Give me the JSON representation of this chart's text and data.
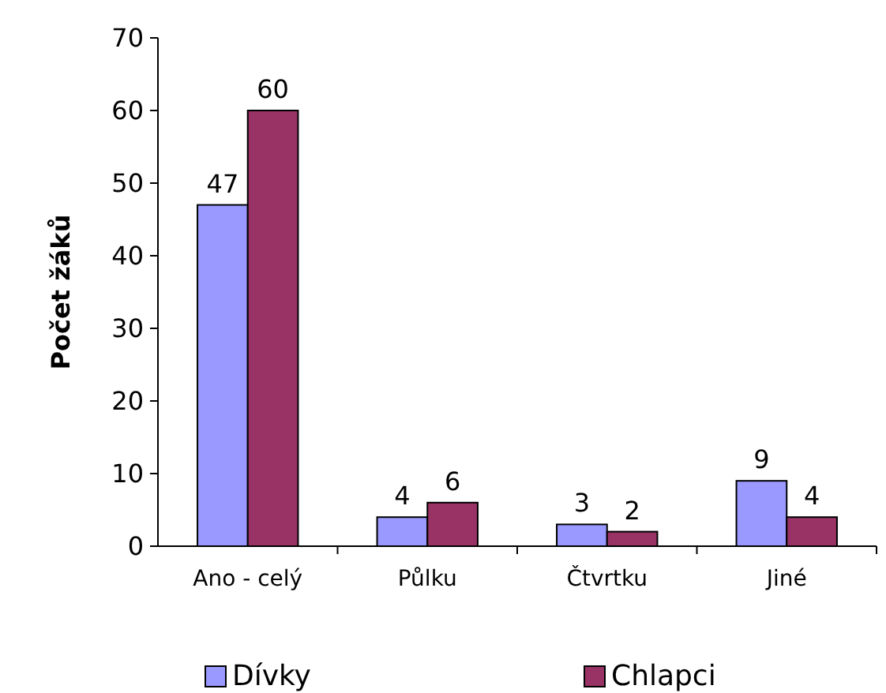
{
  "chart_data": {
    "type": "bar",
    "ylabel": "Počet žáků",
    "categories": [
      "Ano - celý",
      "Půlku",
      "Čtvrtku",
      "Jiné"
    ],
    "series": [
      {
        "name": "Dívky",
        "color": "#9999ff",
        "values": [
          47,
          4,
          3,
          9
        ]
      },
      {
        "name": "Chlapci",
        "color": "#993366",
        "values": [
          60,
          6,
          2,
          4
        ]
      }
    ],
    "ylim": [
      0,
      70
    ],
    "yticks": [
      0,
      10,
      20,
      30,
      40,
      50,
      60,
      70
    ],
    "data_labels": true,
    "legend": "bottom",
    "grid": false
  }
}
